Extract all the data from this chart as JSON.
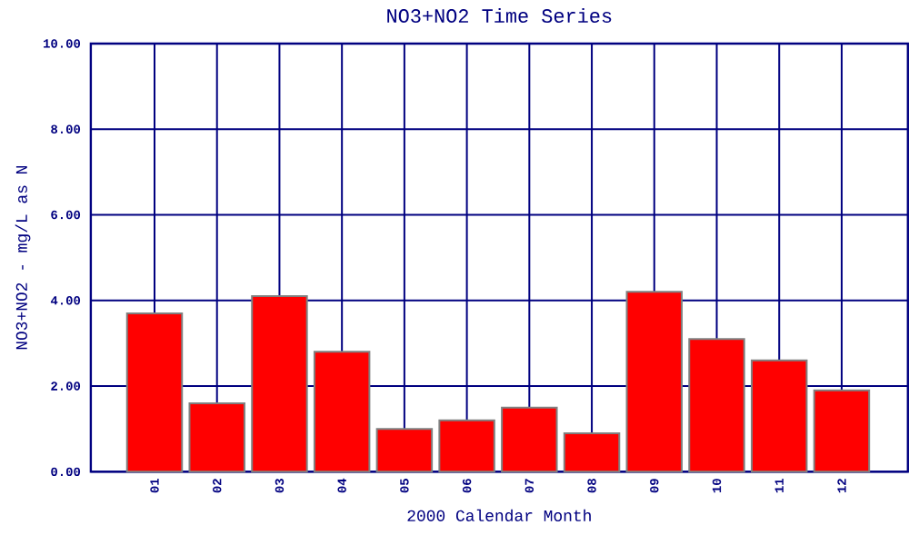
{
  "chart_data": {
    "type": "bar",
    "title": "NO3+NO2 Time Series",
    "xlabel": "2000 Calendar Month",
    "ylabel": "NO3+NO2 - mg/L as N",
    "categories": [
      "01",
      "02",
      "03",
      "04",
      "05",
      "06",
      "07",
      "08",
      "09",
      "10",
      "11",
      "12"
    ],
    "values": [
      3.7,
      1.6,
      4.1,
      2.8,
      1.0,
      1.2,
      1.5,
      0.9,
      4.2,
      3.1,
      2.6,
      1.9
    ],
    "color": "#ff0000",
    "ylim": [
      0,
      10
    ],
    "yticks": [
      {
        "value": 0,
        "label": "0.00"
      },
      {
        "value": 2,
        "label": "2.00"
      },
      {
        "value": 4,
        "label": "4.00"
      },
      {
        "value": 6,
        "label": "6.00"
      },
      {
        "value": 8,
        "label": "8.00"
      },
      {
        "value": 10,
        "label": "10.00"
      }
    ],
    "grid": true
  }
}
